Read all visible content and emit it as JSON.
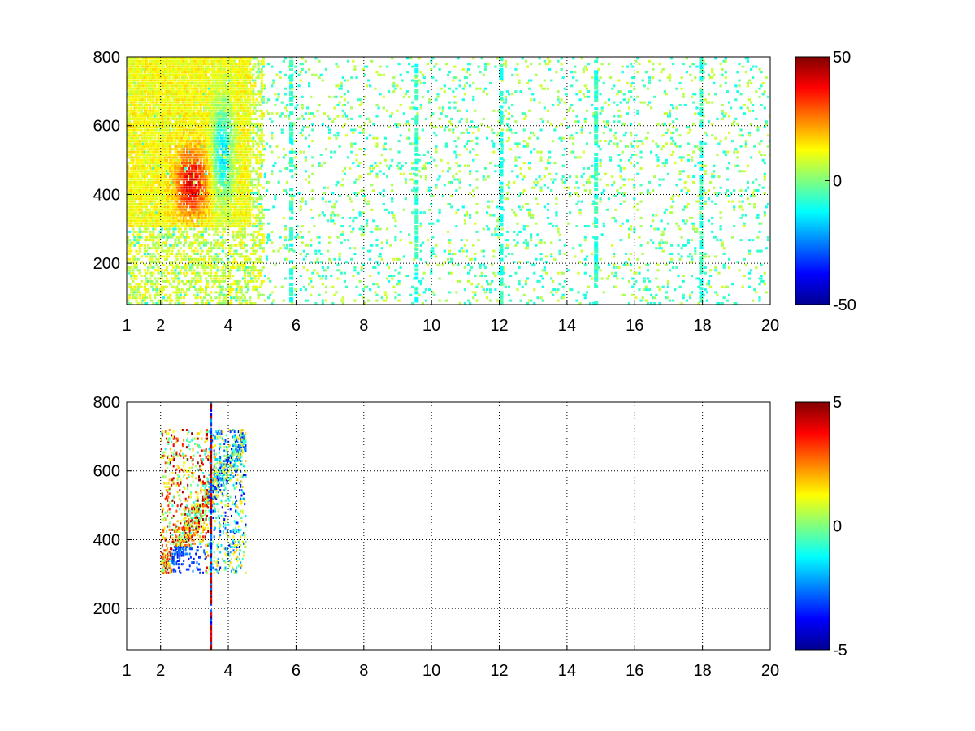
{
  "chart_data": [
    {
      "type": "heatmap",
      "title": "",
      "xlabel": "",
      "ylabel": "",
      "xlim": [
        1,
        20
      ],
      "ylim": [
        80,
        800
      ],
      "xticks": [
        1,
        2,
        4,
        6,
        8,
        10,
        12,
        14,
        16,
        18,
        20
      ],
      "xtick_labels": [
        "1",
        "2",
        "4",
        "6",
        "8",
        "10",
        "12",
        "14",
        "16",
        "18",
        "20"
      ],
      "yticks": [
        200,
        400,
        600,
        800
      ],
      "ytick_labels": [
        "200",
        "400",
        "600",
        "800"
      ],
      "grid": true,
      "colormap": "jet",
      "clim": [
        -50,
        50
      ],
      "colorbar_ticks": [
        50,
        0,
        -50
      ],
      "colorbar_labels": [
        "50",
        "0",
        "-50"
      ],
      "features": [
        {
          "x": [
            2.2,
            3.6
          ],
          "y": [
            320,
            560
          ],
          "value": 35,
          "description_level": "max"
        },
        {
          "x": [
            3.2,
            4.4
          ],
          "y": [
            360,
            700
          ],
          "value": -15
        },
        {
          "x": [
            1.8,
            4.6
          ],
          "y": [
            300,
            800
          ],
          "value": 12
        },
        {
          "x": [
            5,
            20
          ],
          "y": [
            80,
            800
          ],
          "value": -5
        }
      ]
    },
    {
      "type": "heatmap",
      "title": "",
      "xlabel": "",
      "ylabel": "",
      "xlim": [
        1,
        20
      ],
      "ylim": [
        80,
        800
      ],
      "xticks": [
        1,
        2,
        4,
        6,
        8,
        10,
        12,
        14,
        16,
        18,
        20
      ],
      "xtick_labels": [
        "1",
        "2",
        "4",
        "6",
        "8",
        "10",
        "12",
        "14",
        "16",
        "18",
        "20"
      ],
      "yticks": [
        200,
        400,
        600,
        800
      ],
      "ytick_labels": [
        "200",
        "400",
        "600",
        "800"
      ],
      "grid": true,
      "colormap": "jet",
      "clim": [
        -5,
        5
      ],
      "colorbar_ticks": [
        5,
        0,
        -5
      ],
      "colorbar_labels": [
        "5",
        "0",
        "-5"
      ],
      "features": [
        {
          "x": [
            2.2,
            3.5
          ],
          "y": [
            340,
            560
          ],
          "value": 2.5
        },
        {
          "x": [
            2.4,
            3.8
          ],
          "y": [
            300,
            400
          ],
          "value": -3
        },
        {
          "x": [
            3.4,
            3.5
          ],
          "y": [
            80,
            800
          ],
          "value": 5
        }
      ]
    }
  ]
}
